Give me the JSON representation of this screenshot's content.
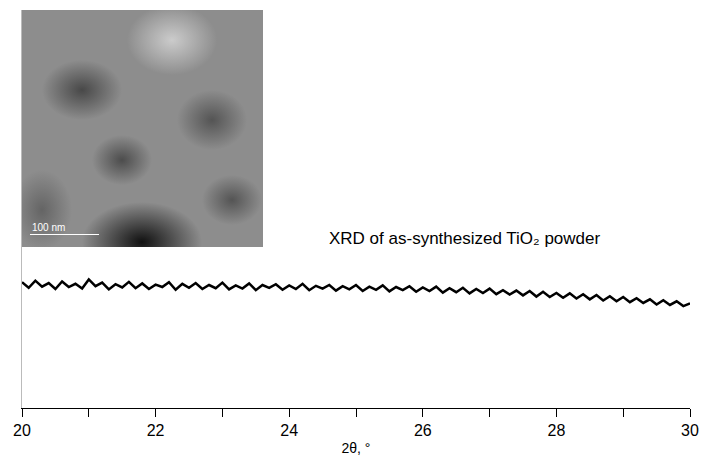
{
  "chart_data": {
    "type": "line",
    "annotations": [
      "XRD of as-synthesized TiO₂ powder"
    ],
    "inset": {
      "type": "image",
      "scale_bar": "100 nm"
    },
    "xlabel": "2θ, °",
    "x": [
      20.0,
      20.1,
      20.2,
      20.3,
      20.4,
      20.5,
      20.6,
      20.7,
      20.8,
      20.9,
      21.0,
      21.1,
      21.2,
      21.3,
      21.4,
      21.5,
      21.6,
      21.7,
      21.8,
      21.9,
      22.0,
      22.1,
      22.2,
      22.3,
      22.4,
      22.5,
      22.6,
      22.7,
      22.8,
      22.9,
      23.0,
      23.1,
      23.2,
      23.3,
      23.4,
      23.5,
      23.6,
      23.7,
      23.8,
      23.9,
      24.0,
      24.1,
      24.2,
      24.3,
      24.4,
      24.5,
      24.6,
      24.7,
      24.8,
      24.9,
      25.0,
      25.1,
      25.2,
      25.3,
      25.4,
      25.5,
      25.6,
      25.7,
      25.8,
      25.9,
      26.0,
      26.1,
      26.2,
      26.3,
      26.4,
      26.5,
      26.6,
      26.7,
      26.8,
      26.9,
      27.0,
      27.1,
      27.2,
      27.3,
      27.4,
      27.5,
      27.6,
      27.7,
      27.8,
      27.9,
      28.0,
      28.1,
      28.2,
      28.3,
      28.4,
      28.5,
      28.6,
      28.7,
      28.8,
      28.9,
      29.0,
      29.1,
      29.2,
      29.3,
      29.4,
      29.5,
      29.6,
      29.7,
      29.8,
      29.9,
      30.0
    ],
    "values": [
      31.6,
      30.2,
      32.0,
      30.5,
      31.4,
      29.9,
      31.8,
      30.4,
      31.2,
      30.0,
      32.3,
      30.6,
      31.5,
      29.8,
      31.1,
      30.3,
      31.7,
      30.1,
      31.3,
      29.9,
      31.0,
      30.4,
      31.6,
      29.7,
      31.2,
      30.2,
      31.4,
      29.9,
      30.9,
      30.1,
      31.5,
      29.8,
      30.8,
      30.0,
      31.3,
      29.6,
      30.9,
      30.2,
      31.1,
      29.7,
      30.8,
      29.9,
      31.2,
      29.6,
      30.7,
      30.0,
      30.9,
      29.5,
      30.6,
      29.8,
      30.9,
      29.4,
      30.5,
      29.7,
      30.8,
      29.3,
      30.4,
      29.6,
      30.6,
      29.2,
      30.3,
      29.4,
      30.5,
      29.0,
      30.1,
      29.1,
      30.2,
      28.8,
      29.9,
      28.9,
      30.0,
      28.6,
      29.6,
      28.5,
      29.5,
      28.3,
      29.4,
      28.0,
      29.2,
      27.9,
      28.9,
      27.7,
      28.8,
      27.5,
      28.6,
      27.3,
      28.4,
      27.0,
      28.1,
      26.8,
      27.9,
      26.6,
      27.6,
      26.4,
      27.3,
      26.0,
      27.1,
      25.9,
      26.8,
      25.6,
      26.3
    ],
    "color": "#000000",
    "xlim": [
      20,
      30
    ],
    "xticks": [
      20,
      22,
      24,
      26,
      28,
      30
    ],
    "ylim": [
      0,
      100
    ],
    "tick_labels": "x",
    "grid": false
  }
}
